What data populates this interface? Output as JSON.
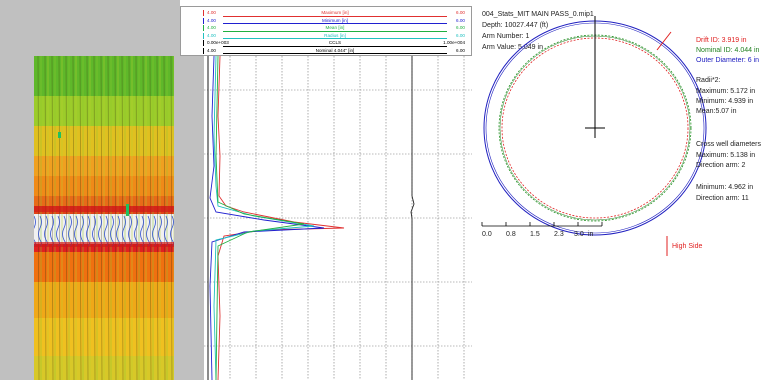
{
  "legend": {
    "rows": [
      {
        "name": "Maximum [in]",
        "min": "4.00",
        "max": "6.00",
        "color": "#e03030"
      },
      {
        "name": "Minimum [in]",
        "min": "4.00",
        "max": "6.00",
        "color": "#2020d0"
      },
      {
        "name": "Mean [in]",
        "min": "4.00",
        "max": "6.00",
        "color": "#20b040"
      },
      {
        "name": "Radius [in]",
        "min": "4.00",
        "max": "6.00",
        "color": "#20c0c0"
      },
      {
        "name": "CCLS",
        "min": "0.00e+003",
        "max": "1.00e+004",
        "color": "#000000"
      },
      {
        "name": "Nominal 4.044\" [in]",
        "min": "4.00",
        "max": "6.00",
        "color": "#000000"
      }
    ]
  },
  "caliper": {
    "file": "004_Stats_MIT MAIN PASS_0.mip1",
    "depth": "Depth: 10027.447 (ft)",
    "arm_number": "Arm Number: 1",
    "arm_value": "Arm Value: 5.049 in",
    "drift_id": "Drift ID: 3.919 in",
    "nominal_id": "Nominal ID: 4.044 in",
    "outer_diameter": "Outer Diameter: 6 in",
    "radii_title": "Radii*2:",
    "radii_max": "Maximum: 5.172 in",
    "radii_min": "Minimum: 4.939 in",
    "radii_mean": "Mean:5.07 in",
    "cross_title": "Cross well diameters",
    "cross_max": "Maximum: 5.138 in",
    "cross_dir1": "Direction arm: 2",
    "cross_min": "Minimum: 4.962 in",
    "cross_dir2": "Direction arm: 11",
    "high_side": "High Side",
    "axis_ticks": [
      "0.0",
      "0.8",
      "1.5",
      "2.3",
      "3.0"
    ],
    "axis_unit": "in",
    "colors": {
      "drift": "#e02020",
      "nominal": "#208020",
      "outer": "#2020c0"
    }
  }
}
